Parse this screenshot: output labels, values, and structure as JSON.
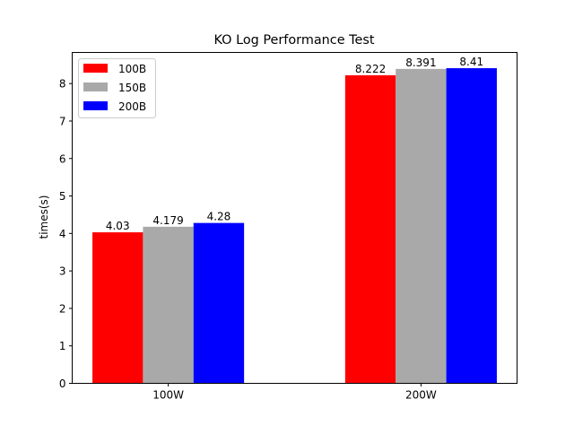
{
  "chart_data": {
    "type": "bar",
    "title": "KO Log Performance Test",
    "xlabel": "",
    "ylabel": "times(s)",
    "categories": [
      "100W",
      "200W"
    ],
    "series": [
      {
        "name": "100B",
        "color": "#ff0000",
        "values": [
          4.03,
          8.222
        ],
        "labels": [
          "4.03",
          "8.222"
        ]
      },
      {
        "name": "150B",
        "color": "#a9a9a9",
        "values": [
          4.179,
          8.391
        ],
        "labels": [
          "4.179",
          "8.391"
        ]
      },
      {
        "name": "200B",
        "color": "#0000ff",
        "values": [
          4.28,
          8.41
        ],
        "labels": [
          "4.28",
          "8.41"
        ]
      }
    ],
    "ylim": [
      0,
      8.83
    ],
    "yticks": [
      "0",
      "1",
      "2",
      "3",
      "4",
      "5",
      "6",
      "7",
      "8"
    ],
    "grid": false,
    "legend_position": "top-left"
  }
}
